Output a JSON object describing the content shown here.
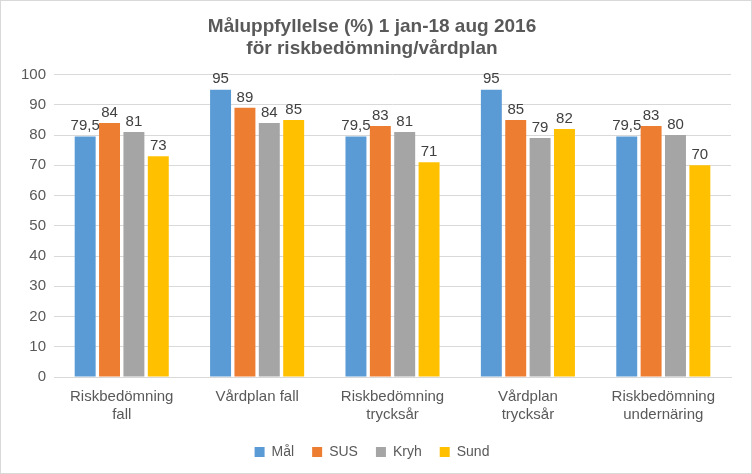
{
  "chart_data": {
    "type": "bar",
    "title": [
      "Måluppfyllelse (%) 1 jan-18 aug 2016",
      "för riskbedömning/vårdplan"
    ],
    "categories": [
      [
        "Riskbedömning",
        "fall"
      ],
      [
        "Vårdplan fall"
      ],
      [
        "Riskbedömning",
        "trycksår"
      ],
      [
        "Vårdplan",
        "trycksår"
      ],
      [
        "Riskbedömning",
        "undernäring"
      ]
    ],
    "series": [
      {
        "name": "Mål",
        "color": "#5b9bd5",
        "values": [
          79.5,
          95,
          79.5,
          95,
          79.5
        ],
        "value_labels": [
          "79,5",
          "95",
          "79,5",
          "95",
          "79,5"
        ]
      },
      {
        "name": "SUS",
        "color": "#ed7d31",
        "values": [
          84,
          89,
          83,
          85,
          83
        ]
      },
      {
        "name": "Kryh",
        "color": "#a5a5a5",
        "values": [
          81,
          84,
          81,
          79,
          80
        ]
      },
      {
        "name": "Sund",
        "color": "#ffc000",
        "values": [
          73,
          85,
          71,
          82,
          70
        ]
      }
    ],
    "ylim": [
      0,
      100
    ],
    "yticks": [
      0,
      10,
      20,
      30,
      40,
      50,
      60,
      70,
      80,
      90,
      100
    ],
    "grid": true,
    "legend": "bottom",
    "data_labels": true
  }
}
